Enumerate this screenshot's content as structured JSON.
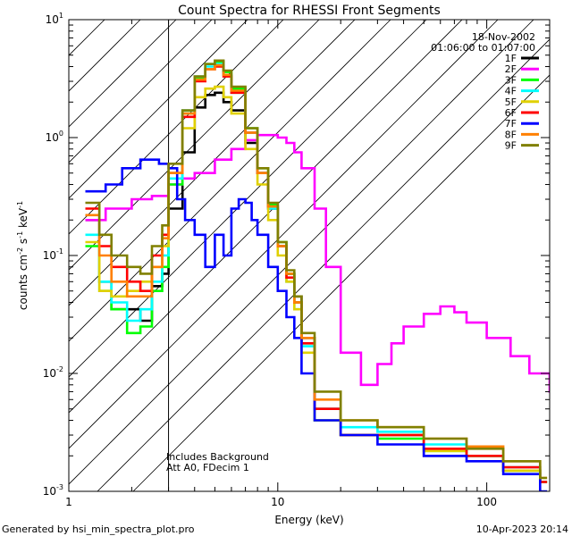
{
  "chart_data": {
    "type": "line",
    "title": "Count Spectra for RHESSI Front Segments",
    "xlabel": "Energy (keV)",
    "ylabel_parts": [
      "counts cm",
      "-2",
      " s",
      "-1",
      " keV",
      "-1"
    ],
    "x_scale": "log",
    "y_scale": "log",
    "xlim": [
      1,
      200
    ],
    "ylim": [
      0.001,
      10
    ],
    "x_ticks": [
      {
        "value": 1,
        "label": "1"
      },
      {
        "value": 10,
        "label": "10"
      },
      {
        "value": 100,
        "label": "100"
      }
    ],
    "y_ticks": [
      {
        "value": 0.001,
        "base": "10",
        "exp": "-3"
      },
      {
        "value": 0.01,
        "base": "10",
        "exp": "-2"
      },
      {
        "value": 0.1,
        "base": "10",
        "exp": "-1"
      },
      {
        "value": 1,
        "base": "10",
        "exp": "0"
      },
      {
        "value": 10,
        "base": "10",
        "exp": "1"
      }
    ],
    "date": "18-Nov-2002",
    "time_range": "01:06:00 to 01:07:00",
    "annotations": [
      "Includes Background",
      "Att A0, FDecim 1"
    ],
    "attenuated_region_max_keV": 3,
    "series": [
      {
        "name": "1F",
        "color": "#000000",
        "x": [
          1.2,
          1.4,
          1.6,
          1.9,
          2.2,
          2.5,
          2.8,
          3.0,
          3.5,
          4.0,
          4.5,
          5.0,
          5.5,
          6.0,
          7.0,
          8.0,
          9.0,
          10.0,
          11.0,
          12.0,
          13.0,
          15.0,
          20.0,
          30.0,
          50.0,
          80.0,
          120.0,
          180.0
        ],
        "values": [
          0.2,
          0.06,
          0.035,
          0.035,
          0.028,
          0.055,
          0.07,
          0.25,
          0.75,
          1.8,
          2.3,
          2.4,
          2.0,
          1.7,
          0.9,
          0.5,
          0.25,
          0.12,
          0.07,
          0.045,
          0.02,
          0.005,
          0.003,
          0.003,
          0.002,
          0.002,
          0.0015,
          0.0012
        ]
      },
      {
        "name": "2F",
        "color": "#ff00ff",
        "x": [
          1.2,
          1.5,
          2.0,
          2.5,
          3.0,
          3.5,
          4.0,
          5.0,
          6.0,
          7.0,
          8.0,
          9.0,
          10.0,
          11.0,
          12.0,
          13.0,
          15.0,
          17.0,
          20.0,
          25.0,
          30.0,
          35.0,
          40.0,
          50.0,
          60.0,
          70.0,
          80.0,
          100.0,
          130.0,
          160.0,
          200.0
        ],
        "values": [
          0.2,
          0.25,
          0.3,
          0.32,
          0.4,
          0.45,
          0.5,
          0.65,
          0.8,
          0.95,
          1.05,
          1.05,
          1.0,
          0.9,
          0.75,
          0.55,
          0.25,
          0.08,
          0.015,
          0.008,
          0.012,
          0.018,
          0.025,
          0.032,
          0.037,
          0.033,
          0.027,
          0.02,
          0.014,
          0.01,
          0.007
        ]
      },
      {
        "name": "3F",
        "color": "#00ff00",
        "x": [
          1.2,
          1.4,
          1.6,
          1.9,
          2.2,
          2.5,
          2.8,
          3.0,
          3.5,
          4.0,
          4.5,
          5.0,
          5.5,
          6.0,
          7.0,
          8.0,
          9.0,
          10.0,
          11.0,
          12.0,
          13.0,
          15.0,
          20.0,
          30.0,
          50.0,
          80.0,
          120.0,
          180.0
        ],
        "values": [
          0.12,
          0.05,
          0.035,
          0.022,
          0.025,
          0.05,
          0.08,
          0.4,
          1.6,
          3.2,
          4.2,
          4.4,
          3.6,
          2.6,
          1.2,
          0.55,
          0.27,
          0.13,
          0.07,
          0.04,
          0.018,
          0.004,
          0.003,
          0.0028,
          0.0022,
          0.002,
          0.0015,
          0.0012
        ]
      },
      {
        "name": "4F",
        "color": "#00ffff",
        "x": [
          1.2,
          1.4,
          1.6,
          1.9,
          2.2,
          2.5,
          2.8,
          3.0,
          3.5,
          4.0,
          4.5,
          5.0,
          5.5,
          6.0,
          7.0,
          8.0,
          9.0,
          10.0,
          11.0,
          12.0,
          13.0,
          15.0,
          20.0,
          30.0,
          50.0,
          80.0,
          120.0,
          180.0
        ],
        "values": [
          0.15,
          0.06,
          0.04,
          0.028,
          0.035,
          0.06,
          0.1,
          0.45,
          1.7,
          3.3,
          4.0,
          4.2,
          3.4,
          2.4,
          1.1,
          0.5,
          0.25,
          0.12,
          0.06,
          0.035,
          0.017,
          0.005,
          0.0035,
          0.0032,
          0.0025,
          0.002,
          0.0016,
          0.0012
        ]
      },
      {
        "name": "5F",
        "color": "#e0d000",
        "x": [
          1.2,
          1.4,
          1.6,
          1.9,
          2.2,
          2.5,
          2.8,
          3.0,
          3.5,
          4.0,
          4.5,
          5.0,
          5.5,
          6.0,
          7.0,
          8.0,
          9.0,
          10.0,
          11.0,
          12.0,
          13.0,
          15.0,
          20.0,
          30.0,
          50.0,
          80.0,
          120.0,
          180.0
        ],
        "values": [
          0.13,
          0.05,
          0.045,
          0.05,
          0.06,
          0.08,
          0.12,
          0.5,
          1.2,
          2.2,
          2.6,
          2.7,
          2.2,
          1.6,
          0.8,
          0.4,
          0.2,
          0.1,
          0.06,
          0.035,
          0.015,
          0.004,
          0.003,
          0.003,
          0.0022,
          0.002,
          0.0015,
          0.0012
        ]
      },
      {
        "name": "6F",
        "color": "#ff0000",
        "x": [
          1.2,
          1.4,
          1.6,
          1.9,
          2.2,
          2.5,
          2.8,
          3.0,
          3.5,
          4.0,
          4.5,
          5.0,
          5.5,
          6.0,
          7.0,
          8.0,
          9.0,
          10.0,
          11.0,
          12.0,
          13.0,
          15.0,
          20.0,
          30.0,
          50.0,
          80.0,
          120.0,
          180.0
        ],
        "values": [
          0.25,
          0.12,
          0.08,
          0.06,
          0.05,
          0.1,
          0.15,
          0.5,
          1.5,
          3.0,
          3.8,
          4.0,
          3.3,
          2.4,
          1.1,
          0.5,
          0.26,
          0.12,
          0.065,
          0.04,
          0.018,
          0.005,
          0.003,
          0.003,
          0.0023,
          0.002,
          0.0016,
          0.0012
        ]
      },
      {
        "name": "7F",
        "color": "#0000ff",
        "x": [
          1.2,
          1.5,
          1.8,
          2.2,
          2.7,
          3.0,
          3.3,
          3.6,
          4.0,
          4.5,
          5.0,
          5.5,
          6.0,
          6.5,
          7.0,
          7.5,
          8.0,
          9.0,
          10.0,
          11.0,
          12.0,
          13.0,
          15.0,
          20.0,
          30.0,
          50.0,
          80.0,
          120.0,
          180.0
        ],
        "values": [
          0.35,
          0.4,
          0.55,
          0.65,
          0.6,
          0.55,
          0.3,
          0.2,
          0.15,
          0.08,
          0.15,
          0.1,
          0.25,
          0.3,
          0.28,
          0.2,
          0.15,
          0.08,
          0.05,
          0.03,
          0.02,
          0.01,
          0.004,
          0.003,
          0.0025,
          0.002,
          0.0018,
          0.0014,
          0.001
        ]
      },
      {
        "name": "8F",
        "color": "#ff8000",
        "x": [
          1.2,
          1.4,
          1.6,
          1.9,
          2.2,
          2.5,
          2.8,
          3.0,
          3.5,
          4.0,
          4.5,
          5.0,
          5.5,
          6.0,
          7.0,
          8.0,
          9.0,
          10.0,
          11.0,
          12.0,
          13.0,
          15.0,
          20.0,
          30.0,
          50.0,
          80.0,
          120.0,
          180.0
        ],
        "values": [
          0.22,
          0.1,
          0.06,
          0.045,
          0.045,
          0.08,
          0.14,
          0.5,
          1.6,
          3.1,
          3.8,
          4.1,
          3.4,
          2.5,
          1.1,
          0.5,
          0.26,
          0.12,
          0.07,
          0.04,
          0.02,
          0.006,
          0.004,
          0.0035,
          0.0028,
          0.0024,
          0.0018,
          0.0013
        ]
      },
      {
        "name": "9F",
        "color": "#808000",
        "x": [
          1.2,
          1.4,
          1.6,
          1.9,
          2.2,
          2.5,
          2.8,
          3.0,
          3.5,
          4.0,
          4.5,
          5.0,
          5.5,
          6.0,
          7.0,
          8.0,
          9.0,
          10.0,
          11.0,
          12.0,
          13.0,
          15.0,
          20.0,
          30.0,
          50.0,
          80.0,
          120.0,
          180.0
        ],
        "values": [
          0.28,
          0.15,
          0.1,
          0.08,
          0.07,
          0.12,
          0.18,
          0.6,
          1.7,
          3.3,
          4.2,
          4.5,
          3.7,
          2.7,
          1.2,
          0.55,
          0.28,
          0.13,
          0.075,
          0.045,
          0.022,
          0.007,
          0.004,
          0.0035,
          0.0028,
          0.0023,
          0.0018,
          0.0013
        ]
      }
    ]
  },
  "footer": {
    "generated_by": "Generated by hsi_min_spectra_plot.pro",
    "timestamp": "10-Apr-2023 20:14"
  }
}
